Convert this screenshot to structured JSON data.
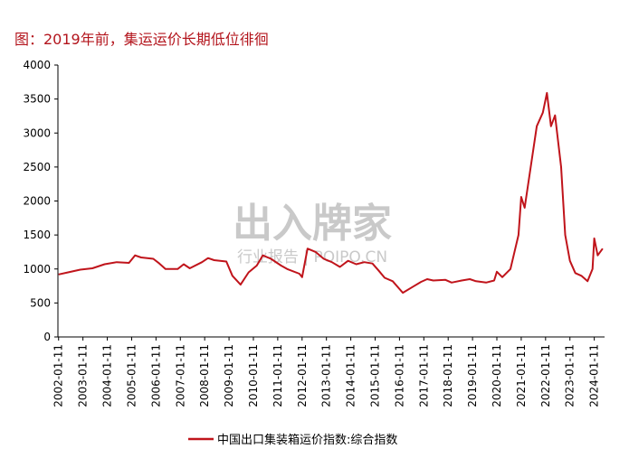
{
  "title": "图：2019年前，集运运价长期低位徘徊",
  "watermark": {
    "main": "出入牌家",
    "sub": "行业报告 | POIPO.CN"
  },
  "colors": {
    "title": "#b3141c",
    "series": "#c0141b",
    "axis": "#000000"
  },
  "chart_data": {
    "type": "line",
    "ylim": [
      0,
      4000
    ],
    "yticks": [
      0,
      500,
      1000,
      1500,
      2000,
      2500,
      3000,
      3500,
      4000
    ],
    "xlim": [
      2002.0,
      2024.45
    ],
    "xticks": [
      "2002-01-11",
      "2003-01-11",
      "2004-01-11",
      "2005-01-11",
      "2006-01-11",
      "2007-01-11",
      "2008-01-11",
      "2009-01-11",
      "2010-01-11",
      "2011-01-11",
      "2012-01-11",
      "2013-01-11",
      "2014-01-11",
      "2015-01-11",
      "2016-01-11",
      "2017-01-11",
      "2018-01-11",
      "2019-01-11",
      "2020-01-11",
      "2021-01-11",
      "2022-01-11",
      "2023-01-11",
      "2024-01-11"
    ],
    "legend": "bottom",
    "series": [
      {
        "name": "中国出口集装箱运价指数:综合指数",
        "points": [
          [
            "2002-01-11",
            920
          ],
          [
            "2002-06-01",
            950
          ],
          [
            "2002-12-01",
            990
          ],
          [
            "2003-06-01",
            1010
          ],
          [
            "2003-12-01",
            1070
          ],
          [
            "2004-06-01",
            1100
          ],
          [
            "2004-12-01",
            1090
          ],
          [
            "2005-03-01",
            1200
          ],
          [
            "2005-06-01",
            1170
          ],
          [
            "2005-12-01",
            1150
          ],
          [
            "2006-03-01",
            1080
          ],
          [
            "2006-06-01",
            1000
          ],
          [
            "2006-12-01",
            1000
          ],
          [
            "2007-03-01",
            1070
          ],
          [
            "2007-06-01",
            1010
          ],
          [
            "2007-12-01",
            1100
          ],
          [
            "2008-03-01",
            1160
          ],
          [
            "2008-06-01",
            1130
          ],
          [
            "2008-12-01",
            1110
          ],
          [
            "2009-03-01",
            900
          ],
          [
            "2009-07-01",
            770
          ],
          [
            "2009-11-01",
            950
          ],
          [
            "2010-03-01",
            1050
          ],
          [
            "2010-06-01",
            1200
          ],
          [
            "2010-10-01",
            1150
          ],
          [
            "2011-03-01",
            1050
          ],
          [
            "2011-06-01",
            1000
          ],
          [
            "2011-12-01",
            930
          ],
          [
            "2012-01-11",
            880
          ],
          [
            "2012-04-01",
            1300
          ],
          [
            "2012-08-01",
            1250
          ],
          [
            "2012-12-01",
            1150
          ],
          [
            "2013-04-01",
            1100
          ],
          [
            "2013-08-01",
            1030
          ],
          [
            "2013-12-01",
            1120
          ],
          [
            "2014-04-01",
            1070
          ],
          [
            "2014-08-01",
            1100
          ],
          [
            "2014-12-01",
            1080
          ],
          [
            "2015-03-01",
            980
          ],
          [
            "2015-06-01",
            870
          ],
          [
            "2015-10-01",
            820
          ],
          [
            "2016-03-01",
            650
          ],
          [
            "2016-08-01",
            740
          ],
          [
            "2016-12-01",
            810
          ],
          [
            "2017-03-01",
            850
          ],
          [
            "2017-06-01",
            830
          ],
          [
            "2017-12-01",
            840
          ],
          [
            "2018-03-01",
            800
          ],
          [
            "2018-08-01",
            830
          ],
          [
            "2018-12-01",
            850
          ],
          [
            "2019-03-01",
            820
          ],
          [
            "2019-08-01",
            800
          ],
          [
            "2019-12-01",
            830
          ],
          [
            "2020-01-11",
            960
          ],
          [
            "2020-04-01",
            880
          ],
          [
            "2020-08-01",
            1000
          ],
          [
            "2020-12-01",
            1500
          ],
          [
            "2021-01-11",
            2060
          ],
          [
            "2021-03-01",
            1900
          ],
          [
            "2021-06-01",
            2500
          ],
          [
            "2021-09-01",
            3100
          ],
          [
            "2021-12-01",
            3300
          ],
          [
            "2022-02-01",
            3590
          ],
          [
            "2022-04-01",
            3100
          ],
          [
            "2022-06-01",
            3260
          ],
          [
            "2022-09-01",
            2500
          ],
          [
            "2022-11-01",
            1500
          ],
          [
            "2023-01-11",
            1120
          ],
          [
            "2023-04-01",
            940
          ],
          [
            "2023-07-01",
            900
          ],
          [
            "2023-10-01",
            820
          ],
          [
            "2023-12-15",
            1000
          ],
          [
            "2024-01-11",
            1450
          ],
          [
            "2024-03-01",
            1200
          ],
          [
            "2024-05-15",
            1300
          ]
        ]
      }
    ]
  }
}
